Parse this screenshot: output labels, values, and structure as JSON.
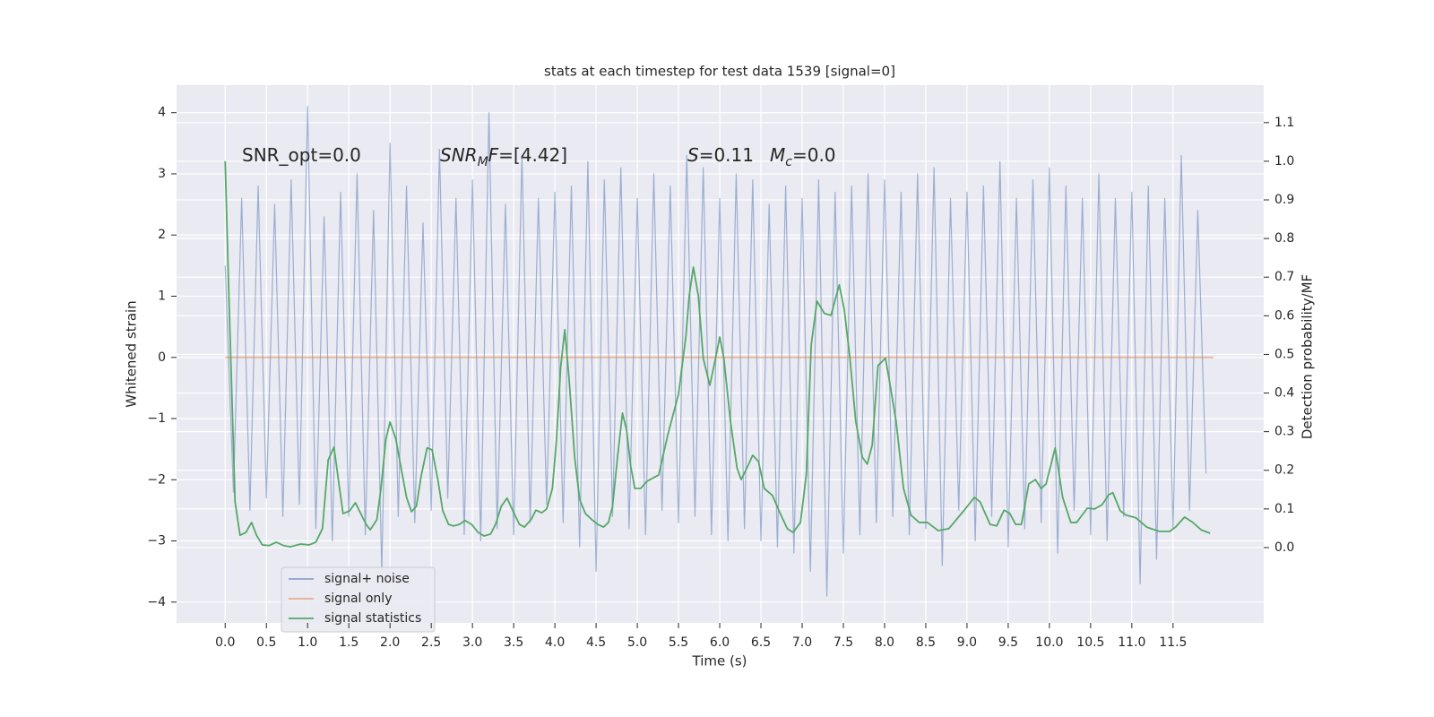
{
  "chart_data": {
    "type": "line",
    "title": "stats at each timestep for test data 1539 [signal=0]",
    "xlabel": "Time (s)",
    "ylabel": "Whitened strain",
    "y2label": "Detection probability/MF",
    "annotations": [
      [
        "SNR_opt=0.0"
      ],
      [
        "SNR",
        "M",
        "F",
        "=[4.42]"
      ],
      [
        "S",
        "=0.11"
      ],
      [
        "M",
        "c",
        "=0.0"
      ]
    ],
    "xlim": [
      -0.59,
      12.6
    ],
    "ylim": [
      -4.34,
      4.45
    ],
    "y2lim": [
      -0.195,
      1.197
    ],
    "xticks": [
      {
        "value": 0,
        "label": "0.0"
      },
      0.5,
      {
        "value": 1,
        "label": "1.0"
      },
      1.5,
      {
        "value": 2,
        "label": "2.0"
      },
      2.5,
      {
        "value": 3,
        "label": "3.0"
      },
      3.5,
      {
        "value": 4,
        "label": "4.0"
      },
      4.5,
      {
        "value": 5,
        "label": "5.0"
      },
      5.5,
      {
        "value": 6,
        "label": "6.0"
      },
      6.5,
      {
        "value": 7,
        "label": "7.0"
      },
      7.5,
      {
        "value": 8,
        "label": "8.0"
      },
      8.5,
      {
        "value": 9,
        "label": "9.0"
      },
      9.5,
      {
        "value": 10,
        "label": "10.0"
      },
      10.5,
      {
        "value": 11,
        "label": "11.0"
      },
      11.5
    ],
    "yticks": [
      {
        "value": -4,
        "label": "−4"
      },
      {
        "value": -3,
        "label": "−3"
      },
      {
        "value": -2,
        "label": "−2"
      },
      {
        "value": -1,
        "label": "−1"
      },
      0,
      1,
      2,
      3,
      4
    ],
    "y2ticks": [
      {
        "value": 0,
        "label": "0.0"
      },
      0.1,
      0.2,
      0.3,
      0.4,
      0.5,
      0.6,
      0.7,
      0.8,
      0.9,
      {
        "value": 1,
        "label": "1.0"
      },
      1.1
    ],
    "grid": true,
    "legend": "lower left",
    "series": [
      {
        "name": "signal+ noise",
        "color": "#4c72b0",
        "x": [
          0.0,
          0.1,
          0.2,
          0.3,
          0.4,
          0.5,
          0.6,
          0.7,
          0.8,
          0.9,
          1.0,
          1.1,
          1.2,
          1.3,
          1.4,
          1.5,
          1.6,
          1.7,
          1.8,
          1.9,
          2.0,
          2.1,
          2.2,
          2.3,
          2.4,
          2.5,
          2.6,
          2.7,
          2.8,
          2.9,
          3.0,
          3.1,
          3.2,
          3.3,
          3.4,
          3.5,
          3.6,
          3.7,
          3.8,
          3.9,
          4.0,
          4.1,
          4.2,
          4.3,
          4.4,
          4.5,
          4.6,
          4.7,
          4.8,
          4.9,
          5.0,
          5.1,
          5.2,
          5.3,
          5.4,
          5.5,
          5.6,
          5.7,
          5.8,
          5.9,
          6.0,
          6.1,
          6.2,
          6.3,
          6.4,
          6.5,
          6.6,
          6.7,
          6.8,
          6.9,
          7.0,
          7.1,
          7.2,
          7.3,
          7.4,
          7.5,
          7.6,
          7.7,
          7.8,
          7.9,
          8.0,
          8.1,
          8.2,
          8.3,
          8.4,
          8.5,
          8.6,
          8.7,
          8.8,
          8.9,
          9.0,
          9.1,
          9.2,
          9.3,
          9.4,
          9.5,
          9.6,
          9.7,
          9.8,
          9.9,
          10.0,
          10.1,
          10.2,
          10.3,
          10.4,
          10.5,
          10.6,
          10.7,
          10.8,
          10.9,
          11.0,
          11.1,
          11.2,
          11.3,
          11.4,
          11.5,
          11.6,
          11.7,
          11.8,
          11.9
        ],
        "values": [
          1.5,
          -2.2,
          2.6,
          -2.5,
          2.8,
          -2.3,
          2.5,
          -2.6,
          2.9,
          -2.4,
          4.1,
          -2.8,
          2.3,
          -3.0,
          2.7,
          -2.6,
          3.0,
          -2.9,
          2.4,
          -3.5,
          3.5,
          -2.6,
          2.8,
          -2.7,
          2.2,
          -2.5,
          3.4,
          -2.3,
          2.6,
          -2.9,
          2.9,
          -3.0,
          4.0,
          -2.8,
          2.5,
          -2.9,
          3.3,
          -2.7,
          2.6,
          -2.4,
          2.7,
          -2.7,
          2.8,
          -3.1,
          3.2,
          -3.5,
          2.9,
          -2.6,
          3.1,
          -2.8,
          2.6,
          -2.9,
          3.0,
          -2.5,
          2.8,
          -2.7,
          3.3,
          -2.6,
          3.1,
          -2.9,
          2.6,
          -3.0,
          3.0,
          -2.8,
          2.9,
          -3.0,
          2.5,
          -3.1,
          2.8,
          -3.2,
          2.6,
          -3.5,
          2.9,
          -3.9,
          2.7,
          -3.2,
          2.8,
          -2.9,
          3.0,
          -2.7,
          2.9,
          -2.6,
          2.7,
          -2.9,
          3.0,
          -2.8,
          3.1,
          -3.4,
          2.6,
          -2.5,
          2.7,
          -3.0,
          2.8,
          -2.6,
          3.2,
          -3.1,
          2.6,
          -2.8,
          2.9,
          -2.7,
          3.1,
          -3.2,
          2.8,
          -2.5,
          2.6,
          -2.9,
          3.0,
          -3.0,
          2.6,
          -2.6,
          2.7,
          -3.7,
          2.8,
          -3.3,
          2.6,
          -2.8,
          3.3,
          -2.5,
          2.4,
          -1.9
        ]
      },
      {
        "name": "signal only",
        "color": "#dd8452",
        "x": [
          0.0,
          11.99
        ],
        "values": [
          0,
          0
        ]
      },
      {
        "name": "signal statistics",
        "color": "#55a868",
        "axis": "y2",
        "x": [
          0,
          0.04,
          0.12,
          0.18,
          0.25,
          0.32,
          0.38,
          0.45,
          0.53,
          0.62,
          0.71,
          0.79,
          0.91,
          1.02,
          1.1,
          1.18,
          1.25,
          1.32,
          1.38,
          1.43,
          1.51,
          1.58,
          1.64,
          1.71,
          1.76,
          1.84,
          1.89,
          1.95,
          2.0,
          2.07,
          2.13,
          2.2,
          2.26,
          2.32,
          2.38,
          2.45,
          2.51,
          2.58,
          2.64,
          2.71,
          2.77,
          2.84,
          2.91,
          2.99,
          3.07,
          3.14,
          3.22,
          3.28,
          3.35,
          3.42,
          3.49,
          3.57,
          3.63,
          3.71,
          3.77,
          3.84,
          3.9,
          3.97,
          4.02,
          4.07,
          4.12,
          4.17,
          4.24,
          4.3,
          4.37,
          4.45,
          4.52,
          4.59,
          4.65,
          4.7,
          4.76,
          4.82,
          4.87,
          4.92,
          4.97,
          5.04,
          5.12,
          5.26,
          5.37,
          5.5,
          5.59,
          5.63,
          5.68,
          5.74,
          5.8,
          5.88,
          5.96,
          6.0,
          6.05,
          6.13,
          6.21,
          6.26,
          6.33,
          6.4,
          6.47,
          6.54,
          6.64,
          6.73,
          6.82,
          6.89,
          6.98,
          7.05,
          7.11,
          7.18,
          7.27,
          7.35,
          7.45,
          7.51,
          7.58,
          7.65,
          7.73,
          7.79,
          7.85,
          7.92,
          8.01,
          8.05,
          8.14,
          8.23,
          8.32,
          8.42,
          8.52,
          8.65,
          8.78,
          8.96,
          9.09,
          9.16,
          9.28,
          9.36,
          9.45,
          9.52,
          9.59,
          9.66,
          9.75,
          9.83,
          9.9,
          9.96,
          10.07,
          10.16,
          10.26,
          10.33,
          10.46,
          10.55,
          10.64,
          10.72,
          10.77,
          10.86,
          10.93,
          11.05,
          11.18,
          11.33,
          11.46,
          11.53,
          11.64,
          11.74,
          11.84,
          11.95
        ],
        "values": [
          1.0,
          0.687,
          0.118,
          0.032,
          0.039,
          0.065,
          0.032,
          0.007,
          0.005,
          0.014,
          0.005,
          0.002,
          0.009,
          0.007,
          0.014,
          0.049,
          0.227,
          0.26,
          0.165,
          0.088,
          0.095,
          0.116,
          0.09,
          0.06,
          0.046,
          0.072,
          0.153,
          0.281,
          0.325,
          0.281,
          0.211,
          0.13,
          0.093,
          0.107,
          0.188,
          0.258,
          0.253,
          0.176,
          0.095,
          0.06,
          0.056,
          0.06,
          0.07,
          0.06,
          0.039,
          0.03,
          0.035,
          0.06,
          0.107,
          0.128,
          0.095,
          0.06,
          0.053,
          0.072,
          0.097,
          0.09,
          0.1,
          0.153,
          0.281,
          0.466,
          0.564,
          0.443,
          0.234,
          0.125,
          0.088,
          0.072,
          0.06,
          0.053,
          0.065,
          0.107,
          0.234,
          0.348,
          0.304,
          0.211,
          0.153,
          0.153,
          0.172,
          0.188,
          0.292,
          0.397,
          0.548,
          0.652,
          0.726,
          0.652,
          0.49,
          0.42,
          0.501,
          0.545,
          0.49,
          0.327,
          0.206,
          0.176,
          0.206,
          0.239,
          0.223,
          0.153,
          0.135,
          0.09,
          0.049,
          0.039,
          0.065,
          0.188,
          0.524,
          0.638,
          0.606,
          0.601,
          0.68,
          0.617,
          0.49,
          0.327,
          0.234,
          0.216,
          0.265,
          0.471,
          0.49,
          0.443,
          0.327,
          0.153,
          0.084,
          0.065,
          0.065,
          0.044,
          0.049,
          0.095,
          0.13,
          0.118,
          0.06,
          0.056,
          0.097,
          0.088,
          0.06,
          0.06,
          0.165,
          0.176,
          0.153,
          0.165,
          0.258,
          0.13,
          0.065,
          0.065,
          0.102,
          0.1,
          0.111,
          0.137,
          0.142,
          0.095,
          0.084,
          0.077,
          0.053,
          0.042,
          0.042,
          0.053,
          0.079,
          0.065,
          0.046,
          0.037
        ]
      }
    ]
  }
}
